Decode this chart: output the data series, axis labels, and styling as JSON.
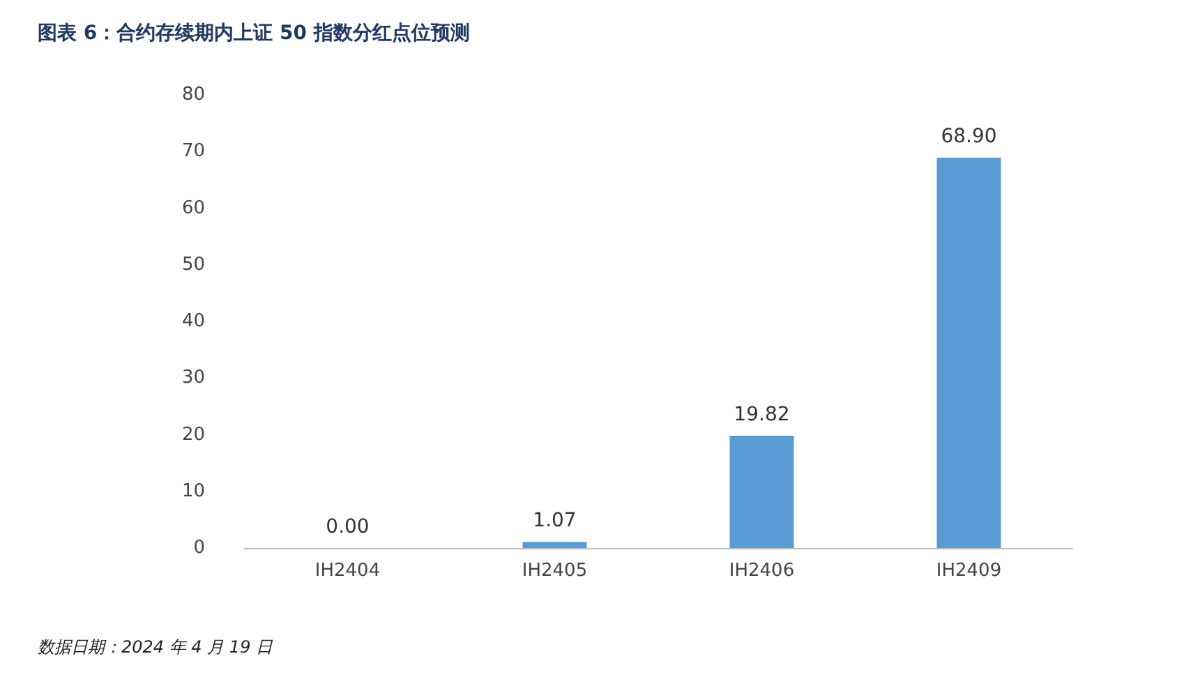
{
  "chart_data": {
    "type": "bar",
    "title": "图表 6：合约存续期内上证 50 指数分红点位预测",
    "categories": [
      "IH2404",
      "IH2405",
      "IH2406",
      "IH2409"
    ],
    "values": [
      0,
      1.07,
      19.82,
      68.9
    ],
    "value_labels": [
      "0.00",
      "1.07",
      "19.82",
      "68.90"
    ],
    "color": "#5b9bd5",
    "ylim": [
      0,
      80
    ],
    "yticks": [
      0,
      10,
      20,
      30,
      40,
      50,
      60,
      70,
      80
    ],
    "annotations": [
      "数据日期：2024 年 4 月 19 日"
    ]
  }
}
